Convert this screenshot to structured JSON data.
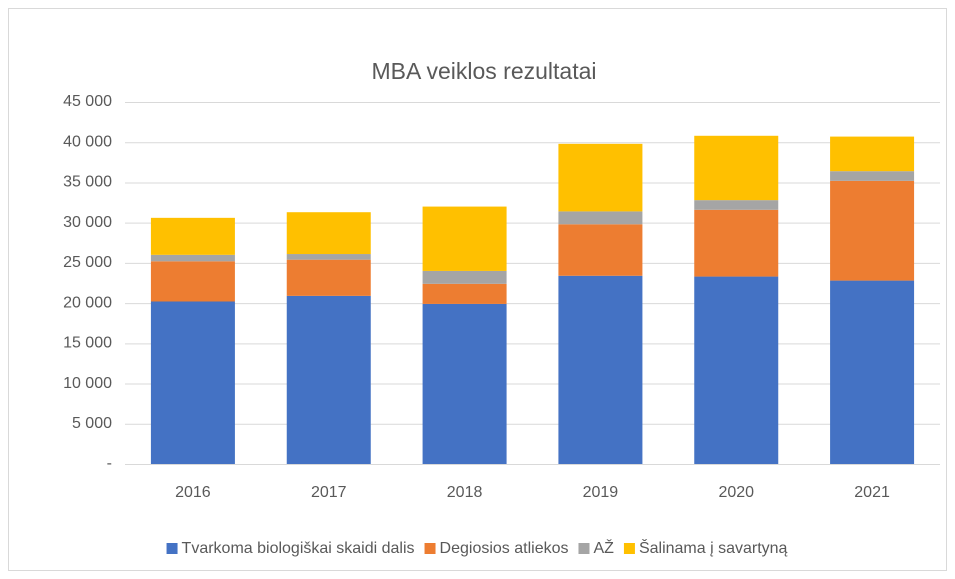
{
  "chart_data": {
    "type": "stacked_bar",
    "title": "MBA veiklos rezultatai",
    "categories": [
      "2016",
      "2017",
      "2018",
      "2019",
      "2020",
      "2021"
    ],
    "series": [
      {
        "name": "Tvarkoma biologiškai skaidi dalis",
        "color": "#4472c4",
        "values": [
          20200,
          20900,
          19900,
          23400,
          23300,
          22800
        ]
      },
      {
        "name": "Degiosios atliekos",
        "color": "#ed7d31",
        "values": [
          5000,
          4500,
          2500,
          6400,
          8300,
          12400
        ]
      },
      {
        "name": "AŽ",
        "color": "#a5a5a5",
        "values": [
          800,
          700,
          1600,
          1600,
          1200,
          1200
        ]
      },
      {
        "name": "Šalinama į savartyną",
        "color": "#ffc000",
        "values": [
          4600,
          5200,
          8000,
          8400,
          8000,
          4300
        ]
      }
    ],
    "ylim": [
      0,
      45000
    ],
    "yticks": [
      {
        "value": 0,
        "label": "-"
      },
      {
        "value": 5000,
        "label": "5 000"
      },
      {
        "value": 10000,
        "label": "10 000"
      },
      {
        "value": 15000,
        "label": "15 000"
      },
      {
        "value": 20000,
        "label": "20 000"
      },
      {
        "value": 25000,
        "label": "25 000"
      },
      {
        "value": 30000,
        "label": "30 000"
      },
      {
        "value": 35000,
        "label": "35 000"
      },
      {
        "value": 40000,
        "label": "40 000"
      },
      {
        "value": 45000,
        "label": "45 000"
      }
    ],
    "grid": true,
    "legend": "bottom"
  }
}
